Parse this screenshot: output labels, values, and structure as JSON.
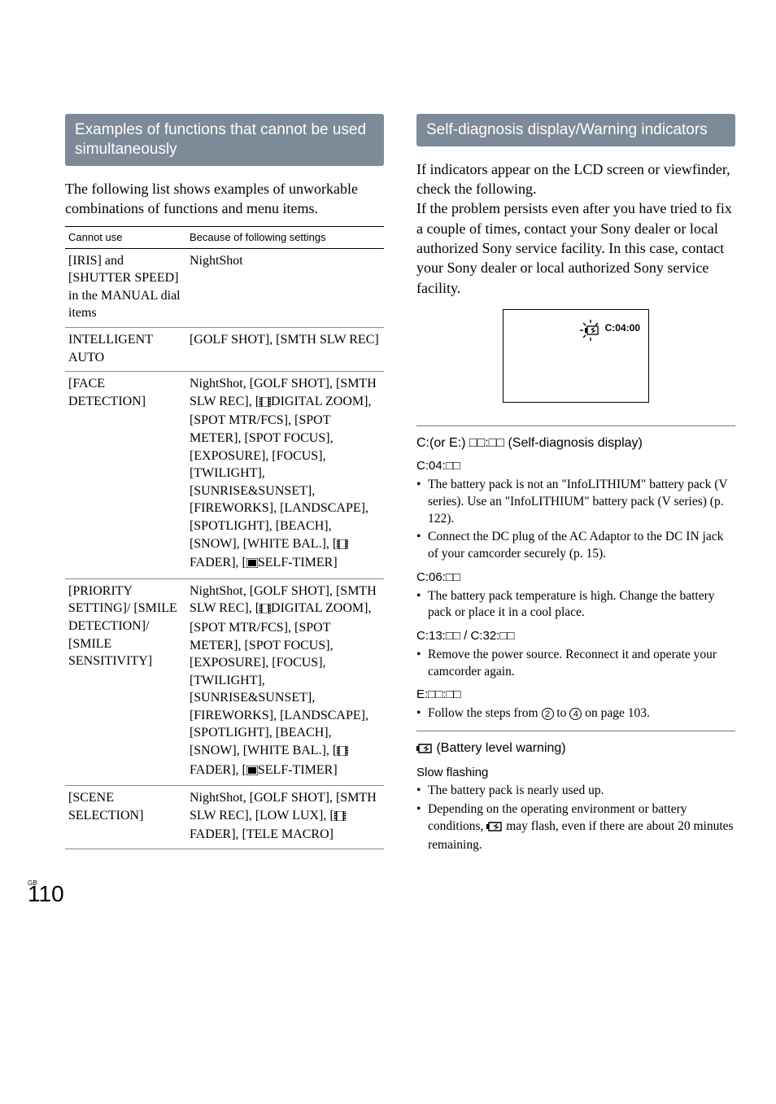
{
  "left": {
    "header": "Examples of functions that cannot be used simultaneously",
    "intro": "The following list shows examples of unworkable combinations of functions and menu items.",
    "table": {
      "col1": "Cannot use",
      "col2": "Because of following settings",
      "rows": [
        {
          "c1": "[IRIS] and [SHUTTER SPEED] in the MANUAL dial items",
          "c2": "NightShot"
        },
        {
          "c1": "INTELLIGENT AUTO",
          "c2": "[GOLF SHOT], [SMTH SLW REC]"
        },
        {
          "c1": "[FACE DETECTION]",
          "c2_parts": [
            "NightShot, [GOLF SHOT], [SMTH SLW REC], [",
            "ICON_FILM",
            "DIGITAL ZOOM], [SPOT MTR/FCS], [SPOT METER], [SPOT FOCUS], [EXPOSURE], [FOCUS], [TWILIGHT], [SUNRISE&SUNSET], [FIREWORKS], [LANDSCAPE], [SPOTLIGHT], [BEACH], [SNOW], [WHITE BAL.], [",
            "ICON_FILM",
            "FADER], [",
            "ICON_PHOTO",
            "SELF-TIMER]"
          ]
        },
        {
          "c1": "[PRIORITY SETTING]/ [SMILE DETECTION]/ [SMILE SENSITIVITY]",
          "c2_parts": [
            "NightShot, [GOLF SHOT], [SMTH SLW REC], [",
            "ICON_FILM",
            "DIGITAL ZOOM], [SPOT MTR/FCS], [SPOT METER], [SPOT FOCUS], [EXPOSURE], [FOCUS], [TWILIGHT], [SUNRISE&SUNSET], [FIREWORKS], [LANDSCAPE], [SPOTLIGHT], [BEACH], [SNOW], [WHITE BAL.], [",
            "ICON_FILM",
            "FADER], [",
            "ICON_PHOTO",
            "SELF-TIMER]"
          ]
        },
        {
          "c1": "[SCENE SELECTION]",
          "c2_parts": [
            "NightShot, [GOLF SHOT], [SMTH SLW REC], [LOW LUX], [",
            "ICON_FILM",
            "FADER], [TELE MACRO]"
          ]
        }
      ]
    }
  },
  "right": {
    "header": "Self-diagnosis display/Warning indicators",
    "intro": "If indicators appear on the LCD screen or viewfinder, check the following.\nIf the problem persists even after you have tried to fix a couple of times, contact your Sony dealer or local authorized Sony service facility. In this case, contact your Sony dealer or local authorized Sony service facility.",
    "diag_code": "C:04:00",
    "sections": [
      {
        "title": "C:(or E:) □□:□□ (Self-diagnosis display)",
        "items": [
          {
            "label": "C:04:□□",
            "bullets": [
              "The battery pack is not an \"InfoLITHIUM\" battery pack (V series). Use an \"InfoLITHIUM\" battery pack (V series) (p. 122).",
              "Connect the DC plug of the AC Adaptor to the DC IN jack of your camcorder securely (p. 15)."
            ]
          },
          {
            "label": "C:06:□□",
            "bullets": [
              "The battery pack temperature is high. Change the battery pack or place it in a cool place."
            ]
          },
          {
            "label": "C:13:□□ / C:32:□□",
            "bullets": [
              "Remove the power source. Reconnect it and operate your camcorder again."
            ]
          },
          {
            "label": "E:□□:□□",
            "bullets_parts": [
              [
                "Follow the steps from ",
                "CIRC_2",
                " to ",
                "CIRC_4",
                " on page 103."
              ]
            ]
          }
        ]
      },
      {
        "title_parts": [
          "ICON_BATT",
          " (Battery level warning)"
        ],
        "items": [
          {
            "label": "Slow flashing",
            "bullets_parts": [
              [
                "The battery pack is nearly used up."
              ],
              [
                "Depending on the operating environment or battery conditions, ",
                "ICON_BATT",
                " may flash, even if there are about 20 minutes remaining."
              ]
            ]
          }
        ]
      }
    ]
  },
  "footer": {
    "gb": "GB",
    "pagenum": "110"
  },
  "icons": {
    "film_svg": "<svg width='14' height='12' viewBox='0 0 14 12'><rect x='0' y='0' width='14' height='12' fill='none' stroke='#000' stroke-width='1'/><rect x='2' y='0' width='1.5' height='12' fill='#000'/><rect x='10.5' y='0' width='1.5' height='12' fill='#000'/><rect x='0' y='2' width='2' height='1.2' fill='#000'/><rect x='0' y='5' width='2' height='1.2' fill='#000'/><rect x='0' y='8' width='2' height='1.2' fill='#000'/><rect x='12' y='2' width='2' height='1.2' fill='#000'/><rect x='12' y='5' width='2' height='1.2' fill='#000'/><rect x='12' y='8' width='2' height='1.2' fill='#000'/></svg>",
    "photo_svg": "<svg width='14' height='12' viewBox='0 0 14 12'><rect x='0' y='0' width='14' height='12' fill='none' stroke='#000' stroke-width='1.2'/><rect x='2' y='2' width='10' height='8' fill='#000'/></svg>",
    "batt_svg": "<svg width='20' height='12' viewBox='0 0 20 12'><rect x='0' y='3' width='3' height='6' fill='#000'/><path d='M3 1 L18 1 L18 11 L3 11 Z' fill='none' stroke='#000' stroke-width='1.4'/><path d='M8 6 L14 2 L12 6 L16 6 L10 10 L12 6 Z' fill='#000'/></svg>",
    "batt_large_svg": "<svg width='30' height='30' viewBox='0 0 30 30'><g stroke='#000' stroke-width='1.4' fill='none'><line x1='15' y1='2' x2='15' y2='6'/><line x1='15' y1='24' x2='15' y2='28'/><line x1='2' y1='15' x2='6' y2='15'/><line x1='6' y1='6' x2='9' y2='9'/><line x1='24' y1='6' x2='21' y2='9'/><line x1='6' y1='24' x2='9' y2='21'/></g><rect x='8' y='12' width='3' height='6' fill='#000'/><rect x='11' y='10' width='13' height='10' fill='none' stroke='#000' stroke-width='1.3'/><path d='M15 14 L20 11 L18 15 L22 15 L16 19 L18 15 Z' fill='#000'/></svg>"
  }
}
